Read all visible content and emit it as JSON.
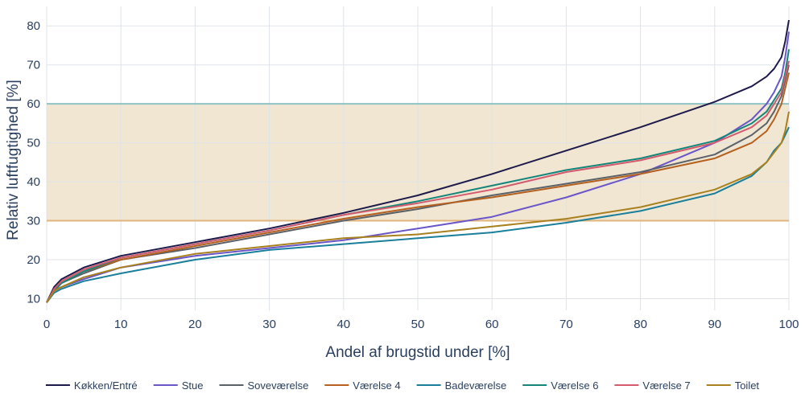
{
  "chart_data": {
    "type": "line",
    "xlabel": "Andel af brugstid under [%]",
    "ylabel": "Relativ luftfugtighed [%]",
    "xlim": [
      0,
      100
    ],
    "ylim": [
      7,
      85
    ],
    "x_ticks": [
      0,
      10,
      20,
      30,
      40,
      50,
      60,
      70,
      80,
      90,
      100
    ],
    "y_ticks": [
      10,
      20,
      30,
      40,
      50,
      60,
      70,
      80
    ],
    "grid": true,
    "legend_position": "bottom",
    "comfort_band": {
      "low": 30,
      "high": 60,
      "fill_color": "#f0e6d2",
      "low_line_color": "#e0b47c",
      "high_line_color": "#8fc3c3"
    },
    "x": [
      0,
      1,
      2,
      5,
      10,
      20,
      30,
      40,
      50,
      60,
      70,
      80,
      90,
      95,
      97,
      98,
      99,
      99.5,
      100
    ],
    "series": [
      {
        "name": "Køkken/Entré",
        "color": "#1d1a4b",
        "values": [
          9,
          13,
          15,
          18,
          21,
          24.5,
          28,
          32,
          36.5,
          42,
          48,
          54,
          60.5,
          64.5,
          67,
          69,
          72,
          76,
          81.5
        ]
      },
      {
        "name": "Stue",
        "color": "#6a55c9",
        "values": [
          9,
          12,
          13,
          15,
          18,
          21,
          23,
          25,
          28,
          31,
          36,
          42,
          50,
          56,
          60,
          63,
          67,
          72,
          78.5
        ]
      },
      {
        "name": "Soveværelse",
        "color": "#5a6168",
        "values": [
          9,
          12,
          14,
          16.5,
          20,
          23,
          26.5,
          30,
          33,
          36.5,
          39.5,
          42.5,
          47,
          52,
          55,
          58,
          62,
          66,
          70
        ]
      },
      {
        "name": "Værelse 4",
        "color": "#b5601e",
        "values": [
          9,
          12,
          14,
          17,
          20,
          23.5,
          27,
          30.5,
          33.5,
          36,
          39,
          42,
          46,
          50,
          53,
          56,
          60,
          64,
          68
        ]
      },
      {
        "name": "Badeværelse",
        "color": "#1a7f9a",
        "values": [
          9,
          11.5,
          12.5,
          14.5,
          16.5,
          20,
          22.5,
          24,
          25.5,
          27,
          29.5,
          32.5,
          37,
          41.5,
          45,
          48,
          50,
          52,
          54
        ]
      },
      {
        "name": "Værelse 6",
        "color": "#14857a",
        "values": [
          9,
          12,
          14,
          17,
          20.5,
          24,
          27.5,
          31.5,
          35,
          39,
          43,
          46,
          50.5,
          55,
          58,
          61,
          64,
          68,
          74
        ]
      },
      {
        "name": "Værelse 7",
        "color": "#d45a6e",
        "values": [
          9,
          12.5,
          14.5,
          17.5,
          20.5,
          24,
          27.5,
          31.5,
          34.5,
          38,
          42.5,
          45.5,
          50,
          54,
          57,
          60,
          63,
          67,
          71
        ]
      },
      {
        "name": "Toilet",
        "color": "#a8801e",
        "values": [
          9,
          12,
          13,
          15.5,
          18,
          21.5,
          23.5,
          25.5,
          26.5,
          28.5,
          30.5,
          33.5,
          38,
          42,
          45,
          47.5,
          50,
          53,
          58
        ]
      }
    ]
  }
}
